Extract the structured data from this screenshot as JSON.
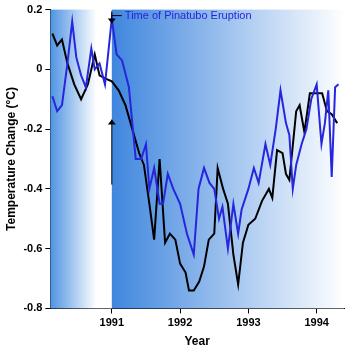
{
  "chart_data": {
    "type": "line",
    "x_label": "Year",
    "y_label": "Temperature Change (°C)",
    "xlim": [
      1990.1,
      1994.4
    ],
    "xticks": [
      1991,
      1992,
      1993,
      1994
    ],
    "ylim": [
      -0.8,
      0.2
    ],
    "yticks": [
      -0.8,
      -0.6,
      -0.4,
      -0.2,
      0,
      0.2
    ],
    "grid": false,
    "annotations": [
      {
        "text": "Time of Pinatubo Eruption",
        "x": 1991
      }
    ],
    "series": [
      {
        "color": "#2626dc",
        "x": [
          1990.13,
          1990.2,
          1990.27,
          1990.35,
          1990.42,
          1990.48,
          1990.55,
          1990.62,
          1990.7,
          1990.75,
          1990.82,
          1990.9,
          1991.0,
          1991.07,
          1991.15,
          1991.25,
          1991.35,
          1991.43,
          1991.5,
          1991.55,
          1991.62,
          1991.7,
          1991.75,
          1991.82,
          1991.9,
          1992.0,
          1992.1,
          1992.2,
          1992.27,
          1992.35,
          1992.43,
          1992.5,
          1992.57,
          1992.62,
          1992.7,
          1992.78,
          1992.85,
          1992.9,
          1993.0,
          1993.08,
          1993.15,
          1993.25,
          1993.32,
          1993.4,
          1993.47,
          1993.55,
          1993.6,
          1993.65,
          1993.7,
          1993.78,
          1993.85,
          1993.92,
          1994.0,
          1994.07,
          1994.12,
          1994.17,
          1994.22,
          1994.27,
          1994.32
        ],
        "values": [
          -0.09,
          -0.14,
          -0.12,
          0.02,
          0.16,
          0.04,
          -0.02,
          -0.06,
          0.07,
          0.0,
          0.02,
          -0.05,
          0.17,
          0.05,
          0.03,
          -0.06,
          -0.3,
          -0.3,
          -0.25,
          -0.4,
          -0.33,
          -0.45,
          -0.45,
          -0.35,
          -0.4,
          -0.45,
          -0.55,
          -0.62,
          -0.4,
          -0.33,
          -0.38,
          -0.4,
          -0.5,
          -0.46,
          -0.6,
          -0.45,
          -0.55,
          -0.47,
          -0.4,
          -0.33,
          -0.38,
          -0.25,
          -0.32,
          -0.2,
          -0.07,
          -0.18,
          -0.22,
          -0.4,
          -0.32,
          -0.25,
          -0.2,
          -0.1,
          -0.05,
          -0.25,
          -0.18,
          -0.07,
          -0.36,
          -0.06,
          -0.05
        ]
      },
      {
        "color": "#000000",
        "x": [
          1990.13,
          1990.2,
          1990.27,
          1990.35,
          1990.45,
          1990.55,
          1990.65,
          1990.75,
          1990.82,
          1990.9,
          1991.0,
          1991.1,
          1991.2,
          1991.3,
          1991.4,
          1991.47,
          1991.55,
          1991.62,
          1991.7,
          1991.78,
          1991.85,
          1991.93,
          1992.0,
          1992.08,
          1992.13,
          1992.2,
          1992.28,
          1992.35,
          1992.42,
          1992.5,
          1992.55,
          1992.63,
          1992.7,
          1992.78,
          1992.85,
          1992.92,
          1993.0,
          1993.1,
          1993.2,
          1993.3,
          1993.35,
          1993.42,
          1993.5,
          1993.55,
          1993.6,
          1993.7,
          1993.75,
          1993.82,
          1993.9,
          1994.0,
          1994.08,
          1994.15,
          1994.22,
          1994.3
        ],
        "values": [
          0.12,
          0.08,
          0.1,
          0.02,
          -0.05,
          -0.1,
          -0.05,
          0.05,
          -0.02,
          -0.03,
          -0.04,
          -0.07,
          -0.12,
          -0.2,
          -0.28,
          -0.32,
          -0.45,
          -0.57,
          -0.3,
          -0.58,
          -0.55,
          -0.57,
          -0.65,
          -0.68,
          -0.74,
          -0.74,
          -0.71,
          -0.66,
          -0.57,
          -0.55,
          -0.33,
          -0.4,
          -0.45,
          -0.62,
          -0.72,
          -0.58,
          -0.52,
          -0.5,
          -0.44,
          -0.4,
          -0.43,
          -0.27,
          -0.28,
          -0.35,
          -0.37,
          -0.14,
          -0.12,
          -0.21,
          -0.08,
          -0.08,
          -0.08,
          -0.14,
          -0.15,
          -0.18
        ]
      }
    ]
  }
}
